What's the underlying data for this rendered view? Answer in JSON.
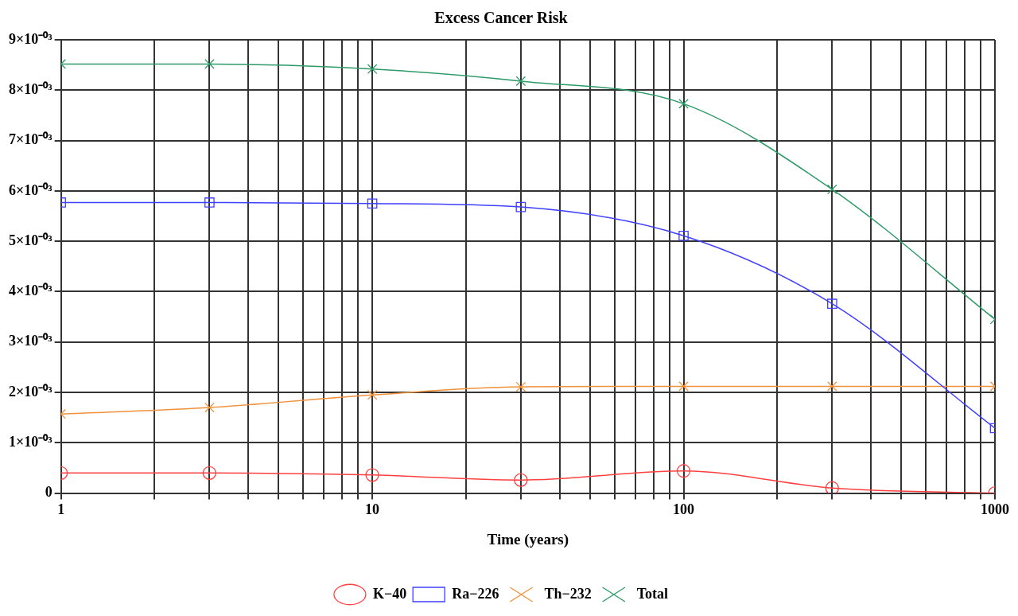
{
  "chart_data": {
    "type": "line",
    "title": "Excess Cancer Risk",
    "xlabel": "Time (years)",
    "log": "x",
    "x": [
      1,
      3,
      10,
      30,
      100,
      300,
      1000
    ],
    "xlim": [
      1,
      1000
    ],
    "xticks": [
      1,
      {
        "value": 2,
        "label": null
      },
      {
        "value": 3,
        "label": null
      },
      {
        "value": 4,
        "label": null
      },
      {
        "value": 5,
        "label": null
      },
      {
        "value": 6,
        "label": null
      },
      {
        "value": 7,
        "label": null
      },
      {
        "value": 8,
        "label": null
      },
      {
        "value": 9,
        "label": null
      },
      10,
      {
        "value": 20,
        "label": null
      },
      {
        "value": 30,
        "label": null
      },
      {
        "value": 40,
        "label": null
      },
      {
        "value": 50,
        "label": null
      },
      {
        "value": 60,
        "label": null
      },
      {
        "value": 70,
        "label": null
      },
      {
        "value": 80,
        "label": null
      },
      {
        "value": 90,
        "label": null
      },
      100,
      {
        "value": 200,
        "label": null
      },
      {
        "value": 300,
        "label": null
      },
      {
        "value": 400,
        "label": null
      },
      {
        "value": 500,
        "label": null
      },
      {
        "value": 600,
        "label": null
      },
      {
        "value": 700,
        "label": null
      },
      {
        "value": 800,
        "label": null
      },
      {
        "value": 900,
        "label": null
      },
      1000
    ],
    "ylim": [
      0,
      0.009
    ],
    "yticks": [
      0,
      {
        "value": 0.001,
        "label": "1×10⁻⁰³"
      },
      {
        "value": 0.002,
        "label": "2×10⁻⁰³"
      },
      {
        "value": 0.003,
        "label": "3×10⁻⁰³"
      },
      {
        "value": 0.004,
        "label": "4×10⁻⁰³"
      },
      {
        "value": 0.005,
        "label": "5×10⁻⁰³"
      },
      {
        "value": 0.006,
        "label": "6×10⁻⁰³"
      },
      {
        "value": 0.007,
        "label": "7×10⁻⁰³"
      },
      {
        "value": 0.008,
        "label": "8×10⁻⁰³"
      },
      {
        "value": 0.009,
        "label": "9×10⁻⁰³"
      }
    ],
    "grid": true,
    "legend": "bottom",
    "line_style": "solid",
    "series": [
      {
        "name": "K−40",
        "color": "#ff4040",
        "marker": "circle",
        "values": [
          0.0004,
          0.0004,
          0.00036,
          0.00026,
          0.00044,
          0.0001,
          0
        ]
      },
      {
        "name": "Ra−226",
        "color": "#4040ff",
        "marker": "square",
        "values": [
          0.00577,
          0.00577,
          0.00575,
          0.00568,
          0.00511,
          0.00376,
          0.00129
        ]
      },
      {
        "name": "Th−232",
        "color": "#f0913c",
        "marker": "cross",
        "values": [
          0.00157,
          0.0017,
          0.00195,
          0.00211,
          0.00212,
          0.00212,
          0.00212
        ]
      },
      {
        "name": "Total",
        "color": "#2e9a68",
        "marker": "cross",
        "values": [
          0.00852,
          0.00852,
          0.00842,
          0.00818,
          0.00773,
          0.00603,
          0.00345
        ]
      }
    ]
  }
}
